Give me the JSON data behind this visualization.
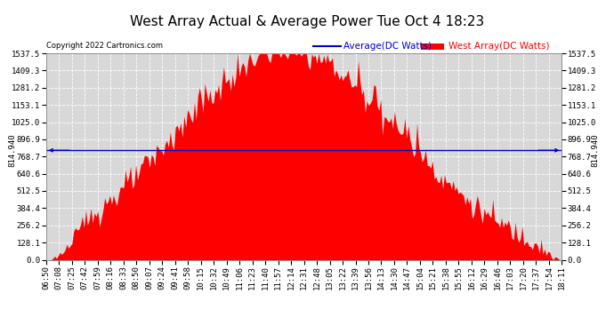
{
  "title": "West Array Actual & Average Power Tue Oct 4 18:23",
  "copyright": "Copyright 2022 Cartronics.com",
  "legend_avg": "Average(DC Watts)",
  "legend_west": "West Array(DC Watts)",
  "avg_value": 814.94,
  "avg_label": "814.940",
  "y_max": 1537.5,
  "y_min": 0.0,
  "y_ticks": [
    0.0,
    128.1,
    256.2,
    384.4,
    512.5,
    640.6,
    768.7,
    896.9,
    1025.0,
    1153.1,
    1281.2,
    1409.3,
    1537.5
  ],
  "fill_color": "#ff0000",
  "avg_line_color": "#0000cd",
  "background_color": "#ffffff",
  "plot_bg_color": "#d8d8d8",
  "title_fontsize": 11,
  "tick_fontsize": 6.5,
  "copyright_fontsize": 6,
  "legend_fontsize": 7.5,
  "x_labels": [
    "06:50",
    "07:08",
    "07:25",
    "07:42",
    "07:59",
    "08:16",
    "08:33",
    "08:50",
    "09:07",
    "09:24",
    "09:41",
    "09:58",
    "10:15",
    "10:32",
    "10:49",
    "11:06",
    "11:23",
    "11:40",
    "11:57",
    "12:14",
    "12:31",
    "12:48",
    "13:05",
    "13:22",
    "13:39",
    "13:56",
    "14:13",
    "14:30",
    "14:47",
    "15:04",
    "15:21",
    "15:38",
    "15:55",
    "16:12",
    "16:29",
    "16:46",
    "17:03",
    "17:20",
    "17:37",
    "17:54",
    "18:11"
  ],
  "num_points": 300,
  "peak_t": 0.47,
  "sigma": 0.22,
  "noise_std": 50,
  "num_spikes": 30,
  "spike_max": 150
}
